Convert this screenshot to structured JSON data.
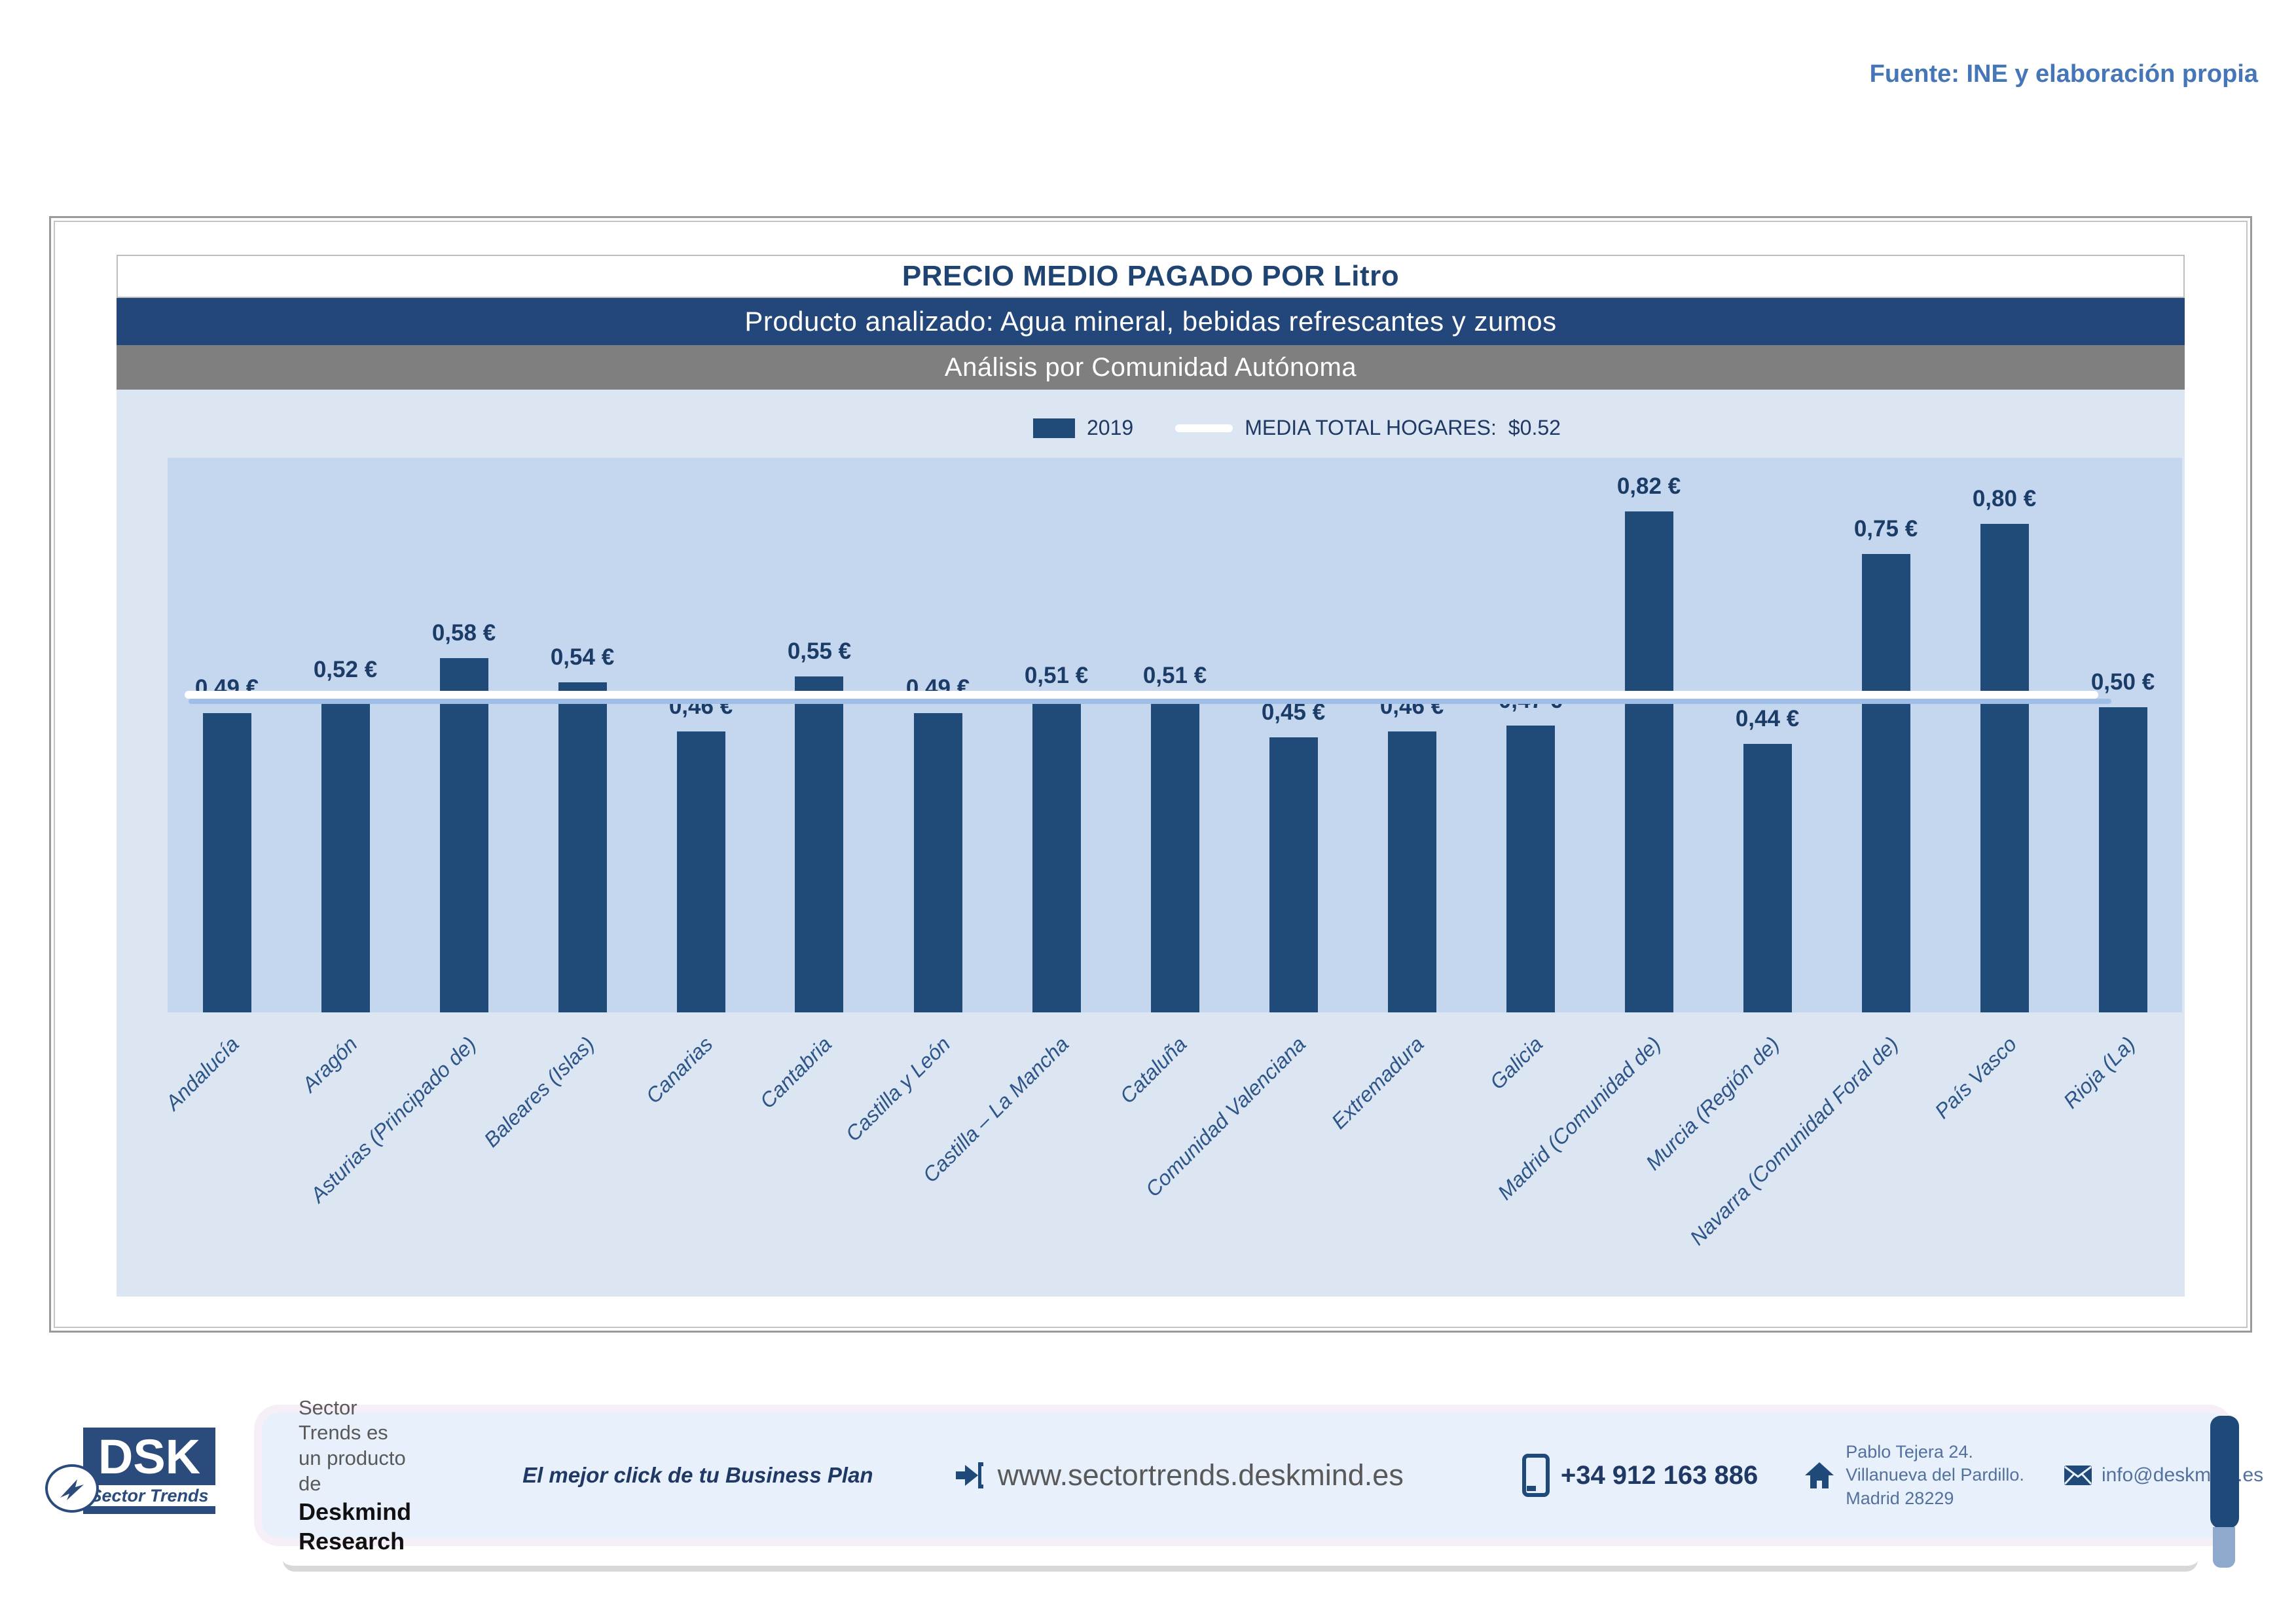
{
  "source_note": "Fuente: INE y elaboración propia",
  "header": {
    "title": "PRECIO MEDIO PAGADO POR Litro",
    "product_line": "Producto analizado: Agua mineral, bebidas refrescantes y zumos",
    "analysis_line": "Análisis por Comunidad Autónoma"
  },
  "legend": {
    "series_label": "2019",
    "media_label": "MEDIA TOTAL  HOGARES:",
    "media_value": "$0.52"
  },
  "chart_data": {
    "type": "bar",
    "title": "PRECIO MEDIO PAGADO POR Litro",
    "categories": [
      "Andalucía",
      "Aragón",
      "Asturias (Principado de)",
      "Baleares (Islas)",
      "Canarias",
      "Cantabria",
      "Castilla y León",
      "Castilla – La Mancha",
      "Cataluña",
      "Comunidad Valenciana",
      "Extremadura",
      "Galicia",
      "Madrid (Comunidad de)",
      "Murcia (Región de)",
      "Navarra (Comunidad Foral de)",
      "País Vasco",
      "Rioja (La)"
    ],
    "values": [
      0.49,
      0.52,
      0.58,
      0.54,
      0.46,
      0.55,
      0.49,
      0.51,
      0.51,
      0.45,
      0.46,
      0.47,
      0.82,
      0.44,
      0.75,
      0.8,
      0.5
    ],
    "series_name": "2019",
    "value_label_suffix": " €",
    "reference_line": {
      "label": "MEDIA TOTAL HOGARES",
      "value": 0.52,
      "color": "#FFFFFF"
    },
    "xlabel": "",
    "ylabel": "",
    "ylim": [
      0,
      0.908
    ],
    "grid": false,
    "legend_position": "top",
    "bar_color": "#204A77",
    "plot_bg": "#C5D7EF",
    "chart_bg": "#DCE6F3"
  },
  "footer": {
    "logo_text": "DSK",
    "logo_sub": "Sector Trends",
    "product_line_1": "Sector Trends es un producto",
    "product_line_2_prefix": "de ",
    "product_line_2_bold": "Deskmind Research",
    "tagline": "El mejor click de tu Business Plan",
    "website": "www.sectortrends.deskmind.es",
    "phone": "+34 912 163 886",
    "address_line1": "Pablo Tejera 24.",
    "address_line2": "Villanueva del Pardillo.",
    "address_line3": "Madrid 28229",
    "email": "info@deskmind.es"
  }
}
